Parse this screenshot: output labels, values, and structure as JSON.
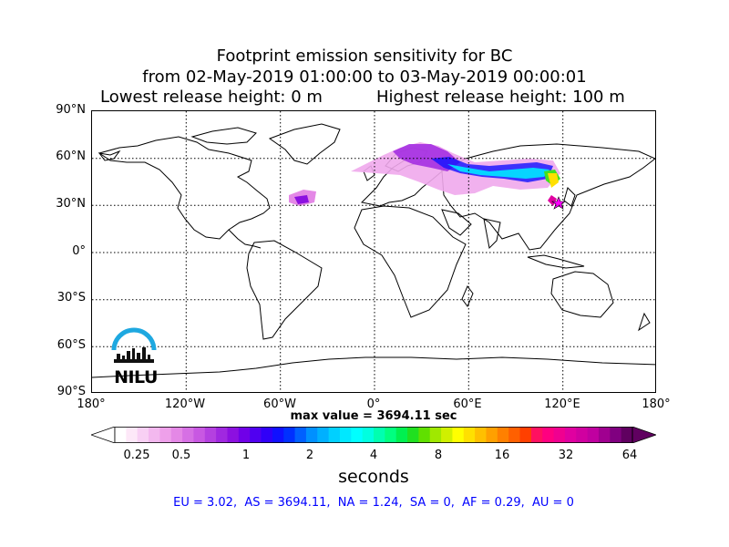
{
  "title": {
    "line1": "Footprint emission sensitivity for BC",
    "line2": "from 02-May-2019 01:00:00 to 03-May-2019 00:00:01",
    "line3_left": "Lowest release height: 0 m",
    "line3_right": "Highest release height: 100 m"
  },
  "map": {
    "lat_ticks": [
      "90°N",
      "60°N",
      "30°N",
      "0°",
      "30°S",
      "60°S",
      "90°S"
    ],
    "lon_ticks": [
      "180°",
      "120°W",
      "60°W",
      "0°",
      "60°E",
      "120°E",
      "180°"
    ],
    "max_value_label": "max value = 3694.11 sec",
    "logo_text": "NILU"
  },
  "colorbar": {
    "tick_labels": [
      "0.25",
      "0.5",
      "1",
      "2",
      "4",
      "8",
      "16",
      "32",
      "64"
    ],
    "unit": "seconds",
    "colors": [
      "#ffffff",
      "#fde8f8",
      "#f8d0f4",
      "#f3b8ef",
      "#eea0ea",
      "#e488e6",
      "#d670e4",
      "#c858e2",
      "#b440e0",
      "#a028e0",
      "#8c10e0",
      "#7000e8",
      "#5000f0",
      "#3000f8",
      "#1010ff",
      "#0030ff",
      "#0060ff",
      "#0090ff",
      "#00b0ff",
      "#00d0ff",
      "#00e8ff",
      "#00ffff",
      "#00ffe0",
      "#00ffb0",
      "#00ff80",
      "#00f050",
      "#20e020",
      "#60e000",
      "#a0e800",
      "#d0f000",
      "#ffff00",
      "#ffe000",
      "#ffc000",
      "#ffa000",
      "#ff8000",
      "#ff6000",
      "#ff4000",
      "#ff1060",
      "#ff0080",
      "#f00090",
      "#e000a0",
      "#d000a0",
      "#c000a0",
      "#a00090",
      "#800080",
      "#600060"
    ]
  },
  "region_summary": "EU = 3.02,  AS = 3694.11,  NA = 1.24,  SA = 0,  AF = 0.29,  AU = 0"
}
